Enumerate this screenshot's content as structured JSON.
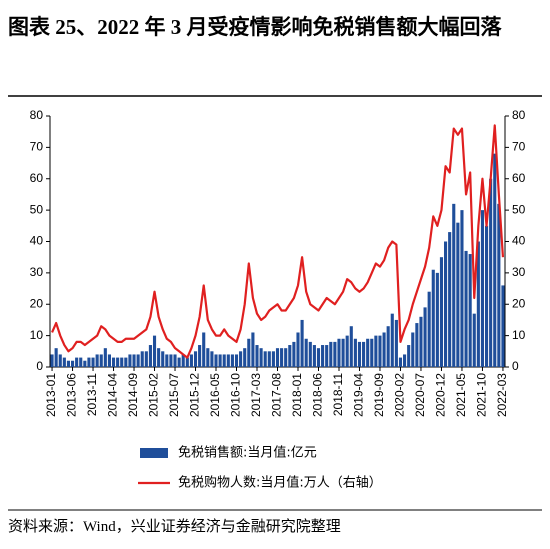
{
  "title": "图表 25、2022 年 3 月受疫情影响免税销售额大幅回落",
  "source": "资料来源：Wind，兴业证券经济与金融研究院整理",
  "chart_data": {
    "type": "bar-line",
    "categories": [
      "2013-01",
      null,
      null,
      null,
      null,
      "2013-06",
      null,
      null,
      null,
      null,
      "2013-11",
      null,
      null,
      null,
      null,
      "2014-04",
      null,
      null,
      null,
      null,
      "2014-09",
      null,
      null,
      null,
      null,
      "2015-02",
      null,
      null,
      null,
      null,
      "2015-07",
      null,
      null,
      null,
      null,
      "2015-12",
      null,
      null,
      null,
      null,
      "2016-05",
      null,
      null,
      null,
      null,
      "2016-10",
      null,
      null,
      null,
      null,
      "2017-03",
      null,
      null,
      null,
      null,
      "2017-08",
      null,
      null,
      null,
      null,
      "2018-01",
      null,
      null,
      null,
      null,
      "2018-06",
      null,
      null,
      null,
      null,
      "2018-11",
      null,
      null,
      null,
      null,
      "2019-04",
      null,
      null,
      null,
      null,
      "2019-09",
      null,
      null,
      null,
      null,
      "2020-02",
      null,
      null,
      null,
      null,
      "2020-07",
      null,
      null,
      null,
      null,
      "2020-12",
      null,
      null,
      null,
      null,
      "2021-05",
      null,
      null,
      null,
      null,
      "2021-10",
      null,
      null,
      null,
      null,
      "2022-03"
    ],
    "series": [
      {
        "name": "免税销售额:当月值:亿元",
        "color": "#1f4e9a",
        "kind": "bar",
        "values": [
          4,
          6,
          4,
          3,
          2,
          2,
          3,
          3,
          2,
          3,
          3,
          4,
          4,
          6,
          4,
          3,
          3,
          3,
          3,
          4,
          4,
          4,
          5,
          5,
          7,
          10,
          6,
          5,
          4,
          4,
          4,
          3,
          4,
          3,
          4,
          5,
          7,
          11,
          6,
          5,
          4,
          4,
          4,
          4,
          4,
          4,
          5,
          6,
          9,
          11,
          7,
          6,
          5,
          5,
          5,
          6,
          6,
          6,
          7,
          8,
          11,
          15,
          9,
          8,
          7,
          6,
          7,
          7,
          8,
          8,
          9,
          9,
          10,
          13,
          9,
          8,
          8,
          9,
          9,
          10,
          10,
          11,
          13,
          17,
          15,
          3,
          4,
          7,
          11,
          14,
          16,
          19,
          24,
          31,
          30,
          35,
          40,
          43,
          52,
          46,
          50,
          37,
          36,
          17,
          40,
          50,
          45,
          60,
          68,
          52,
          26
        ]
      },
      {
        "name": "免税购物人数:当月值:万人（右轴）",
        "color": "#e02020",
        "kind": "line",
        "axis": "y2",
        "values": [
          11,
          14,
          10,
          7,
          5,
          6,
          8,
          8,
          7,
          8,
          9,
          10,
          13,
          12,
          10,
          9,
          8,
          8,
          9,
          9,
          9,
          10,
          11,
          12,
          16,
          24,
          16,
          12,
          9,
          8,
          6,
          5,
          4,
          3,
          6,
          10,
          16,
          26,
          15,
          12,
          10,
          10,
          12,
          10,
          9,
          8,
          12,
          20,
          33,
          22,
          17,
          15,
          16,
          18,
          19,
          20,
          18,
          18,
          20,
          22,
          26,
          35,
          24,
          20,
          19,
          18,
          20,
          22,
          21,
          20,
          22,
          24,
          28,
          27,
          25,
          24,
          25,
          27,
          30,
          33,
          32,
          34,
          38,
          40,
          39,
          8,
          12,
          15,
          20,
          24,
          28,
          32,
          38,
          48,
          45,
          50,
          64,
          62,
          76,
          74,
          76,
          55,
          62,
          22,
          45,
          60,
          45,
          60,
          77,
          55,
          35
        ]
      }
    ],
    "ylim": [
      0,
      80
    ],
    "yticks": [
      0,
      10,
      20,
      30,
      40,
      50,
      60,
      70,
      80
    ],
    "y2lim": [
      0,
      80
    ],
    "y2ticks": [
      0,
      10,
      20,
      30,
      40,
      50,
      60,
      70,
      80
    ]
  }
}
